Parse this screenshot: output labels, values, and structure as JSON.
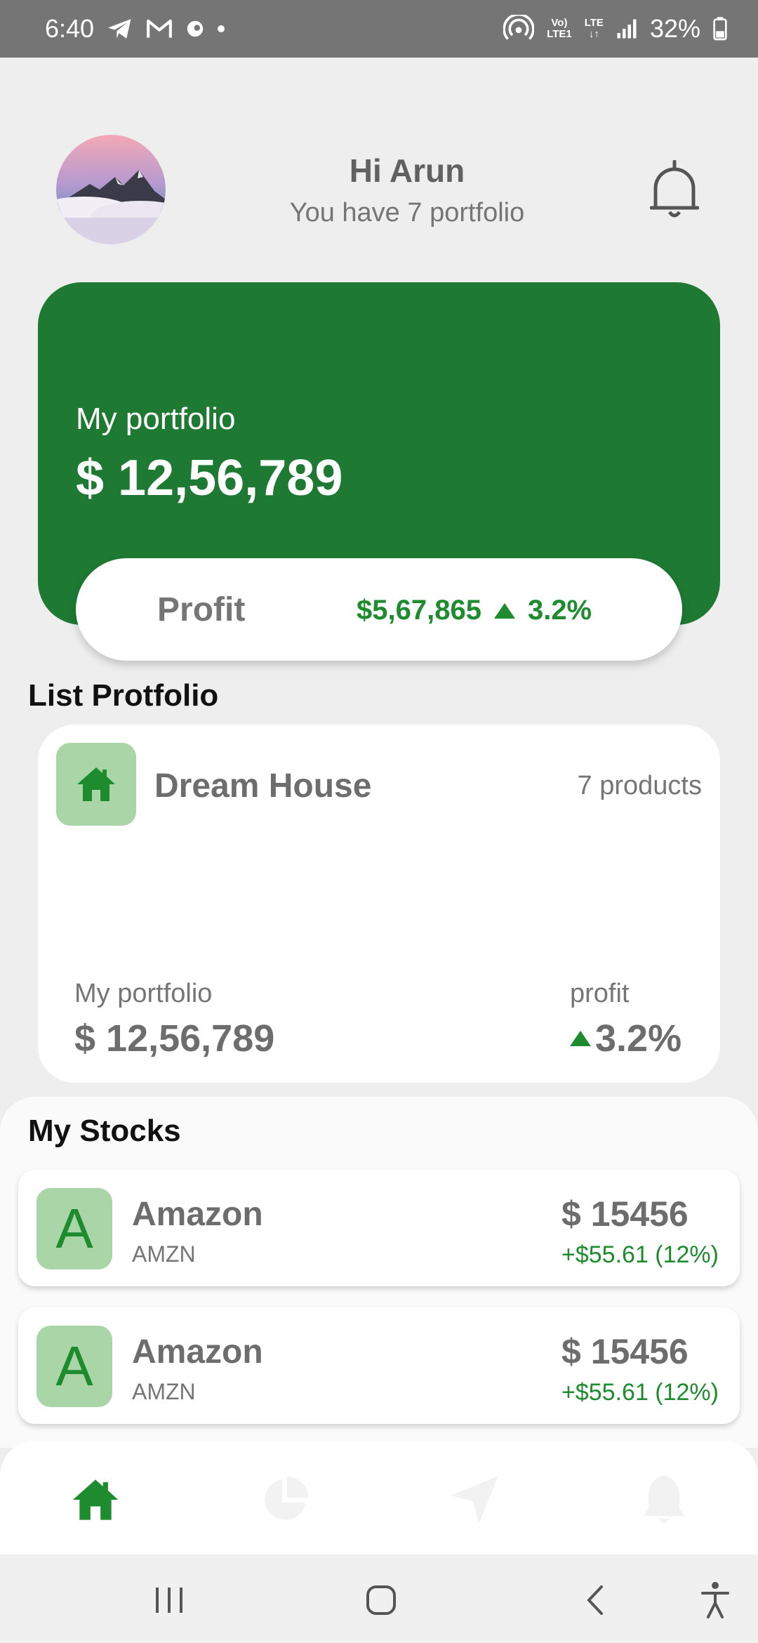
{
  "status_bar": {
    "time": "6:40",
    "network_top": "Vo)",
    "network_bottom": "LTE1",
    "lte_label": "LTE",
    "battery": "32%",
    "icons": [
      "telegram-icon",
      "gmail-icon",
      "app-icon",
      "hotspot-icon",
      "signal-icon",
      "battery-icon"
    ]
  },
  "header": {
    "greeting": "Hi Arun",
    "subtitle": "You have 7 portfolio",
    "icons": [
      "avatar-image",
      "bell-icon"
    ]
  },
  "portfolio_card": {
    "label": "My portfolio",
    "value": "$ 12,56,789",
    "color": "#1e7a32"
  },
  "profit_pill": {
    "label": "Profit",
    "amount": "$5,67,865",
    "percent": "3.2%",
    "color": "#1e8c2e"
  },
  "list_portfolio": {
    "title": "List Protfolio",
    "card": {
      "name": "Dream House",
      "count": "7 products",
      "portfolio_label": "My portfolio",
      "portfolio_value": "$ 12,56,789",
      "profit_label": "profit",
      "profit_value": "3.2%",
      "icon": "house-icon"
    }
  },
  "my_stocks": {
    "title": "My Stocks",
    "items": [
      {
        "logo": "A",
        "name": "Amazon",
        "ticker": "AMZN",
        "price": "$ 15456",
        "change": "+$55.61 (12%)"
      },
      {
        "logo": "A",
        "name": "Amazon",
        "ticker": "AMZN",
        "price": "$ 15456",
        "change": "+$55.61 (12%)"
      }
    ]
  },
  "bottom_nav": {
    "items": [
      "home-icon",
      "pie-chart-icon",
      "send-icon",
      "bell-icon"
    ],
    "active": "home-icon",
    "active_color": "#1e8c2e",
    "inactive_color": "#f2f2f2"
  },
  "system_nav": {
    "buttons": [
      "recent-apps-icon",
      "home-button-icon",
      "back-icon",
      "accessibility-icon"
    ]
  }
}
